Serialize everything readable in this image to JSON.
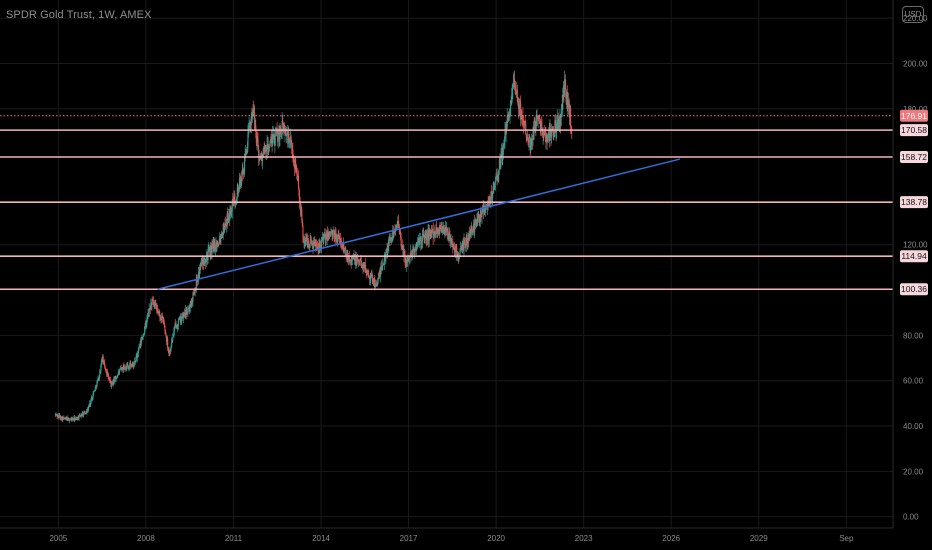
{
  "header": {
    "title": "SPDR Gold Trust, 1W, AMEX",
    "currency": "USD"
  },
  "colors": {
    "background": "#000000",
    "grid": "#1a1a1a",
    "up_candle": "#26a69a",
    "down_candle": "#ef5350",
    "level_line": "#f5b3bb",
    "level_tag_bg": "#f8d7dc",
    "trendline": "#2f6fd6",
    "current_price_tag": "#f0787f",
    "axis_text": "#8a8a8a"
  },
  "chart_data": {
    "type": "candlestick",
    "title": "SPDR Gold Trust, 1W, AMEX",
    "xlim": [
      2003.0,
      2033.6
    ],
    "ylim": [
      -5,
      228
    ],
    "grid": true,
    "x_ticks": [
      {
        "value": 2005,
        "label": "2005"
      },
      {
        "value": 2008,
        "label": "2008"
      },
      {
        "value": 2011,
        "label": "2011"
      },
      {
        "value": 2014,
        "label": "2014"
      },
      {
        "value": 2017,
        "label": "2017"
      },
      {
        "value": 2020,
        "label": "2020"
      },
      {
        "value": 2023,
        "label": "2023"
      },
      {
        "value": 2026,
        "label": "2026"
      },
      {
        "value": 2029,
        "label": "2029"
      },
      {
        "value": 2032,
        "label": "Sep"
      }
    ],
    "y_ticks": [
      {
        "value": 220,
        "label": "220.00"
      },
      {
        "value": 200,
        "label": "200.00"
      },
      {
        "value": 180,
        "label": "180.00"
      },
      {
        "value": 120,
        "label": "120.00"
      },
      {
        "value": 80,
        "label": "80.00"
      },
      {
        "value": 60,
        "label": "60.00"
      },
      {
        "value": 40,
        "label": "40.00"
      },
      {
        "value": 20,
        "label": "20.00"
      },
      {
        "value": 0,
        "label": "0.00"
      }
    ],
    "price_path": [
      [
        2004.9,
        45
      ],
      [
        2005.2,
        43
      ],
      [
        2005.6,
        43
      ],
      [
        2006.0,
        47
      ],
      [
        2006.4,
        62
      ],
      [
        2006.5,
        70
      ],
      [
        2006.8,
        58
      ],
      [
        2007.2,
        66
      ],
      [
        2007.6,
        67
      ],
      [
        2007.9,
        80
      ],
      [
        2008.2,
        95
      ],
      [
        2008.6,
        86
      ],
      [
        2008.8,
        72
      ],
      [
        2009.0,
        84
      ],
      [
        2009.5,
        92
      ],
      [
        2009.9,
        112
      ],
      [
        2010.5,
        122
      ],
      [
        2010.9,
        135
      ],
      [
        2011.3,
        150
      ],
      [
        2011.65,
        180
      ],
      [
        2011.9,
        158
      ],
      [
        2012.3,
        165
      ],
      [
        2012.7,
        172
      ],
      [
        2012.95,
        165
      ],
      [
        2013.2,
        150
      ],
      [
        2013.4,
        122
      ],
      [
        2013.9,
        120
      ],
      [
        2014.3,
        125
      ],
      [
        2014.6,
        123
      ],
      [
        2014.9,
        115
      ],
      [
        2015.4,
        112
      ],
      [
        2015.9,
        102
      ],
      [
        2016.3,
        120
      ],
      [
        2016.6,
        130
      ],
      [
        2016.9,
        112
      ],
      [
        2017.4,
        122
      ],
      [
        2017.8,
        125
      ],
      [
        2018.2,
        128
      ],
      [
        2018.7,
        115
      ],
      [
        2019.0,
        122
      ],
      [
        2019.5,
        135
      ],
      [
        2019.8,
        140
      ],
      [
        2020.0,
        148
      ],
      [
        2020.2,
        160
      ],
      [
        2020.6,
        190
      ],
      [
        2020.9,
        176
      ],
      [
        2021.2,
        164
      ],
      [
        2021.4,
        178
      ],
      [
        2021.7,
        167
      ],
      [
        2022.2,
        175
      ],
      [
        2022.35,
        190
      ],
      [
        2022.6,
        172
      ]
    ],
    "horizontal_levels": [
      170.58,
      158.72,
      138.78,
      114.94,
      100.36
    ],
    "current_price": 176.91,
    "trendline": {
      "from": [
        2008.4,
        100.36
      ],
      "to": [
        2026.3,
        157.8
      ]
    }
  }
}
